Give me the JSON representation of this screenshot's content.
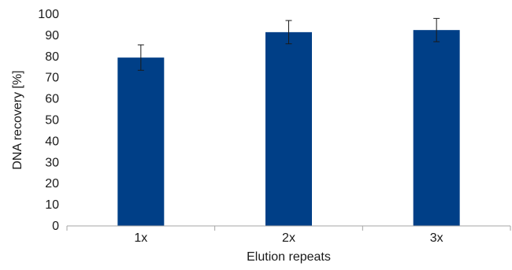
{
  "chart_data": {
    "type": "bar",
    "categories": [
      "1x",
      "2x",
      "3x"
    ],
    "values": [
      79.5,
      91.5,
      92.5
    ],
    "errors": [
      6,
      5.5,
      5.5
    ],
    "xlabel": "Elution repeats",
    "ylabel": "DNA recovery [%]",
    "ylim": [
      0,
      100
    ],
    "yticks": [
      0,
      10,
      20,
      30,
      40,
      50,
      60,
      70,
      80,
      90,
      100
    ],
    "grid": false,
    "legend": "none",
    "bar_color": "#003f87",
    "axis_color": "#a6a6a6"
  }
}
